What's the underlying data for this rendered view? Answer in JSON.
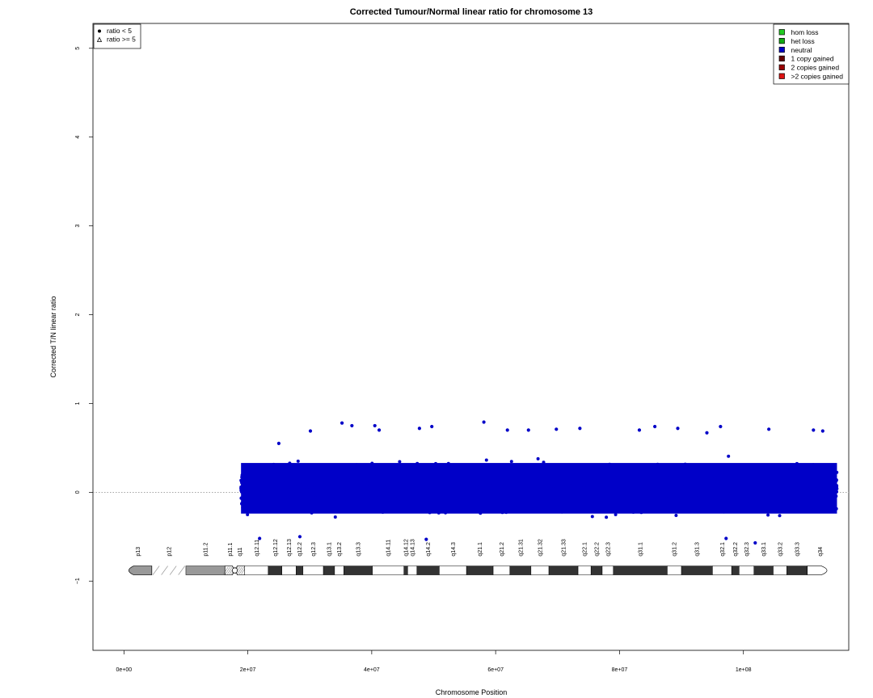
{
  "chart_data": {
    "type": "scatter",
    "title": "Corrected Tumour/Normal linear ratio for chromosome  13",
    "xlabel": "Chromosome Position",
    "ylabel": "Corrected T/N linear ratio",
    "xlim": [
      -5000000,
      117000000
    ],
    "ylim": [
      -1.78,
      5.28
    ],
    "x_ticks": [
      0,
      20000000,
      40000000,
      60000000,
      80000000,
      100000000
    ],
    "x_tick_labels": [
      "0e+00",
      "2e+07",
      "4e+07",
      "6e+07",
      "8e+07",
      "1e+08"
    ],
    "y_ticks": [
      -1,
      0,
      1,
      2,
      3,
      4,
      5
    ],
    "y_tick_labels": [
      "−1",
      "0",
      "1",
      "2",
      "3",
      "4",
      "5"
    ],
    "reference_line": {
      "y": 0,
      "style": "dotted",
      "color": "#888888"
    },
    "series": [
      {
        "name": "neutral",
        "color": "#0000c8",
        "marker": "dot",
        "x_range": [
          18900000,
          115100000
        ],
        "y_center": 0,
        "y_typical_range": [
          -0.48,
          0.62
        ],
        "notable_points": [
          {
            "x": 25000000,
            "y": 0.55
          },
          {
            "x": 30100000,
            "y": 0.69
          },
          {
            "x": 35200000,
            "y": 0.78
          },
          {
            "x": 36800000,
            "y": 0.75
          },
          {
            "x": 40500000,
            "y": 0.75
          },
          {
            "x": 41200000,
            "y": 0.7
          },
          {
            "x": 47700000,
            "y": 0.72
          },
          {
            "x": 49700000,
            "y": 0.74
          },
          {
            "x": 58100000,
            "y": 0.79
          },
          {
            "x": 61900000,
            "y": 0.7
          },
          {
            "x": 65300000,
            "y": 0.7
          },
          {
            "x": 69800000,
            "y": 0.71
          },
          {
            "x": 73600000,
            "y": 0.72
          },
          {
            "x": 83200000,
            "y": 0.7
          },
          {
            "x": 85700000,
            "y": 0.74
          },
          {
            "x": 89400000,
            "y": 0.72
          },
          {
            "x": 94100000,
            "y": 0.67
          },
          {
            "x": 96300000,
            "y": 0.74
          },
          {
            "x": 104100000,
            "y": 0.71
          },
          {
            "x": 111300000,
            "y": 0.7
          },
          {
            "x": 112800000,
            "y": 0.69
          },
          {
            "x": 21900000,
            "y": -0.52
          },
          {
            "x": 28400000,
            "y": -0.5
          },
          {
            "x": 48800000,
            "y": -0.53
          },
          {
            "x": 101900000,
            "y": -0.57
          },
          {
            "x": 97200000,
            "y": -0.52
          }
        ]
      }
    ],
    "point_legend": {
      "position": "top-left",
      "entries": [
        {
          "symbol": "dot",
          "label": "ratio < 5"
        },
        {
          "symbol": "triangle",
          "label": "ratio >= 5"
        }
      ]
    },
    "state_legend": {
      "position": "top-right",
      "entries": [
        {
          "label": "hom loss",
          "color": "#22cc22"
        },
        {
          "label": "het loss",
          "color": "#11aa11"
        },
        {
          "label": "neutral",
          "color": "#0000c8"
        },
        {
          "label": "1 copy gained",
          "color": "#660000"
        },
        {
          "label": "2 copies gained",
          "color": "#990000"
        },
        {
          "label": ">2 copies gained",
          "color": "#dd1111"
        }
      ]
    },
    "ideogram": {
      "y": -0.88,
      "bands": [
        {
          "name": "p13",
          "start": 0,
          "end": 4500000,
          "stain": "gpos50"
        },
        {
          "name": "p12",
          "start": 4500000,
          "end": 10000000,
          "stain": "stalk"
        },
        {
          "name": "p11.2",
          "start": 10000000,
          "end": 16300000,
          "stain": "gpos50"
        },
        {
          "name": "p11.1",
          "start": 16300000,
          "end": 17900000,
          "stain": "acen"
        },
        {
          "name": "q11",
          "start": 17900000,
          "end": 19500000,
          "stain": "acen"
        },
        {
          "name": "q12.11",
          "start": 19500000,
          "end": 23300000,
          "stain": "gneg"
        },
        {
          "name": "q12.12",
          "start": 23300000,
          "end": 25500000,
          "stain": "gpos"
        },
        {
          "name": "q12.13",
          "start": 25500000,
          "end": 27800000,
          "stain": "gneg"
        },
        {
          "name": "q12.2",
          "start": 27800000,
          "end": 28900000,
          "stain": "gpos"
        },
        {
          "name": "q12.3",
          "start": 28900000,
          "end": 32200000,
          "stain": "gneg"
        },
        {
          "name": "q13.1",
          "start": 32200000,
          "end": 34000000,
          "stain": "gpos"
        },
        {
          "name": "q13.2",
          "start": 34000000,
          "end": 35500000,
          "stain": "gneg"
        },
        {
          "name": "q13.3",
          "start": 35500000,
          "end": 40100000,
          "stain": "gpos"
        },
        {
          "name": "q14.11",
          "start": 40100000,
          "end": 45200000,
          "stain": "gneg"
        },
        {
          "name": "q14.12",
          "start": 45200000,
          "end": 45800000,
          "stain": "gpos"
        },
        {
          "name": "q14.13",
          "start": 45800000,
          "end": 47300000,
          "stain": "gneg"
        },
        {
          "name": "q14.2",
          "start": 47300000,
          "end": 50900000,
          "stain": "gpos"
        },
        {
          "name": "q14.3",
          "start": 50900000,
          "end": 55300000,
          "stain": "gneg"
        },
        {
          "name": "q21.1",
          "start": 55300000,
          "end": 59600000,
          "stain": "gpos"
        },
        {
          "name": "q21.2",
          "start": 59600000,
          "end": 62300000,
          "stain": "gneg"
        },
        {
          "name": "q21.31",
          "start": 62300000,
          "end": 65700000,
          "stain": "gpos"
        },
        {
          "name": "q21.32",
          "start": 65700000,
          "end": 68600000,
          "stain": "gneg"
        },
        {
          "name": "q21.33",
          "start": 68600000,
          "end": 73300000,
          "stain": "gpos"
        },
        {
          "name": "q22.1",
          "start": 73300000,
          "end": 75400000,
          "stain": "gneg"
        },
        {
          "name": "q22.2",
          "start": 75400000,
          "end": 77200000,
          "stain": "gpos"
        },
        {
          "name": "q22.3",
          "start": 77200000,
          "end": 79000000,
          "stain": "gneg"
        },
        {
          "name": "q31.1",
          "start": 79000000,
          "end": 87700000,
          "stain": "gpos"
        },
        {
          "name": "q31.2",
          "start": 87700000,
          "end": 90000000,
          "stain": "gneg"
        },
        {
          "name": "q31.3",
          "start": 90000000,
          "end": 95000000,
          "stain": "gpos"
        },
        {
          "name": "q32.1",
          "start": 95000000,
          "end": 98100000,
          "stain": "gneg"
        },
        {
          "name": "q32.2",
          "start": 98100000,
          "end": 99300000,
          "stain": "gpos"
        },
        {
          "name": "q32.3",
          "start": 99300000,
          "end": 101700000,
          "stain": "gneg"
        },
        {
          "name": "q33.1",
          "start": 101700000,
          "end": 104800000,
          "stain": "gpos"
        },
        {
          "name": "q33.2",
          "start": 104800000,
          "end": 107000000,
          "stain": "gneg"
        },
        {
          "name": "q33.3",
          "start": 107000000,
          "end": 110300000,
          "stain": "gpos"
        },
        {
          "name": "q34",
          "start": 110300000,
          "end": 114400000,
          "stain": "gneg"
        }
      ]
    }
  }
}
